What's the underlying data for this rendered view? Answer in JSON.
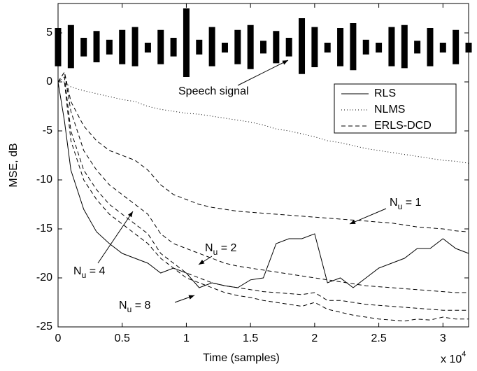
{
  "chart_data": {
    "type": "line",
    "xlabel": "Time (samples)",
    "ylabel": "MSE, dB",
    "x_multiplier": {
      "base": "x 10",
      "exp": "4"
    },
    "xlim": [
      0,
      3.2
    ],
    "ylim": [
      -25,
      8
    ],
    "xticks": [
      0,
      0.5,
      1,
      1.5,
      2,
      2.5,
      3
    ],
    "yticks": [
      5,
      0,
      -5,
      -10,
      -15,
      -20,
      -25
    ],
    "grid": false,
    "legend": "upper-right",
    "x": [
      0,
      0.05,
      0.1,
      0.2,
      0.3,
      0.4,
      0.5,
      0.6,
      0.7,
      0.8,
      0.9,
      1.0,
      1.1,
      1.2,
      1.3,
      1.4,
      1.5,
      1.6,
      1.7,
      1.8,
      1.9,
      2.0,
      2.1,
      2.2,
      2.3,
      2.4,
      2.5,
      2.6,
      2.7,
      2.8,
      2.9,
      3.0,
      3.1,
      3.2
    ],
    "series": [
      {
        "name": "RLS",
        "color": "#000000",
        "dash": "solid",
        "curves": [
          {
            "values": [
              0,
              -4,
              -9,
              -13,
              -15.3,
              -16.5,
              -17.5,
              -18,
              -18.5,
              -19.5,
              -19,
              -19.5,
              -21,
              -20.5,
              -20.8,
              -21,
              -20.2,
              -20,
              -16.5,
              -16,
              -16,
              -15.5,
              -20.5,
              -20,
              -21,
              -20,
              -19,
              -18.5,
              -18,
              -17,
              -17,
              -16,
              -17,
              -17.5
            ]
          }
        ]
      },
      {
        "name": "NLMS",
        "color": "#000000",
        "dash": "dotted",
        "curves": [
          {
            "values": [
              0,
              0,
              -0.5,
              -0.9,
              -1.2,
              -1.5,
              -1.8,
              -2,
              -2.5,
              -2.8,
              -3,
              -3.2,
              -3.3,
              -3.5,
              -3.7,
              -3.9,
              -4.1,
              -4.4,
              -4.8,
              -5,
              -5.3,
              -5.6,
              -6,
              -6.2,
              -6.5,
              -6.8,
              -7,
              -7.2,
              -7.4,
              -7.6,
              -7.8,
              -8,
              -8.1,
              -8.3
            ]
          }
        ]
      },
      {
        "name": "ERLS-DCD",
        "color": "#000000",
        "dash": "dashed",
        "curves": [
          {
            "label": {
              "main": "N",
              "sub": "u",
              "rest": " = 1"
            },
            "values": [
              0,
              1,
              -2,
              -4.5,
              -6,
              -7,
              -7.5,
              -8,
              -9,
              -10.5,
              -11.5,
              -12,
              -12.5,
              -12.8,
              -13,
              -13.2,
              -13.3,
              -13.4,
              -13.5,
              -13.6,
              -13.7,
              -13.8,
              -13.9,
              -14,
              -14.1,
              -14.2,
              -14.3,
              -14.4,
              -14.6,
              -14.8,
              -14.9,
              -15,
              -15.2,
              -15.3
            ]
          },
          {
            "label": {
              "main": "N",
              "sub": "u",
              "rest": " = 2"
            },
            "values": [
              0,
              1,
              -3,
              -7,
              -9,
              -10.5,
              -11.5,
              -12.5,
              -13.5,
              -15.5,
              -16.5,
              -17,
              -17.5,
              -18,
              -18.5,
              -18.8,
              -19,
              -19.2,
              -19.4,
              -19.6,
              -19.8,
              -20,
              -20.2,
              -20.4,
              -20.6,
              -20.8,
              -20.9,
              -21,
              -21.1,
              -21.2,
              -21.3,
              -21.4,
              -21.5,
              -21.5
            ]
          },
          {
            "label": {
              "main": "N",
              "sub": "u",
              "rest": " = 4"
            },
            "values": [
              0,
              0.5,
              -5,
              -9,
              -11,
              -12.5,
              -13.5,
              -14.5,
              -15.5,
              -17.5,
              -18.5,
              -19.5,
              -20,
              -20.5,
              -20.8,
              -21,
              -21.2,
              -21.4,
              -21.5,
              -21.6,
              -21.7,
              -21.5,
              -22.3,
              -22.3,
              -22.5,
              -22.7,
              -22.8,
              -22.9,
              -23,
              -23.1,
              -23.2,
              -23.3,
              -23.3,
              -23.3
            ]
          },
          {
            "label": {
              "main": "N",
              "sub": "u",
              "rest": " = 8"
            },
            "values": [
              0,
              0,
              -6,
              -10,
              -12,
              -13.5,
              -14.5,
              -15.5,
              -16.5,
              -18,
              -19,
              -20,
              -20.5,
              -21,
              -21.5,
              -21.8,
              -22,
              -22.3,
              -22.5,
              -22.7,
              -22.9,
              -22.5,
              -23.2,
              -23.5,
              -23.8,
              -24,
              -24.2,
              -24.3,
              -24.4,
              -24.2,
              -24.3,
              -24,
              -24.2,
              -24.2
            ]
          }
        ]
      }
    ],
    "speech": {
      "label": "Speech signal",
      "x": [
        0,
        0.1,
        0.2,
        0.3,
        0.4,
        0.5,
        0.6,
        0.7,
        0.8,
        0.9,
        1.0,
        1.1,
        1.2,
        1.3,
        1.4,
        1.5,
        1.6,
        1.7,
        1.8,
        1.9,
        2.0,
        2.1,
        2.2,
        2.3,
        2.4,
        2.5,
        2.6,
        2.7,
        2.8,
        2.9,
        3.0,
        3.1,
        3.2
      ],
      "upper": [
        5.5,
        5.8,
        4.5,
        5.2,
        4.3,
        5.3,
        5.6,
        4.0,
        5.3,
        4.5,
        7.5,
        4.3,
        5.6,
        4.0,
        5.3,
        5.8,
        4.2,
        5.2,
        4.5,
        6.5,
        5.6,
        4.0,
        5.5,
        6.0,
        4.3,
        4.0,
        5.6,
        5.8,
        4.2,
        5.5,
        4.0,
        5.3,
        4.0
      ],
      "lower": [
        1.6,
        1.4,
        2.6,
        2.0,
        2.8,
        1.8,
        1.6,
        3.0,
        1.8,
        2.6,
        0.5,
        2.8,
        1.6,
        3.0,
        1.8,
        1.3,
        2.9,
        1.9,
        2.6,
        0.8,
        1.5,
        3.0,
        1.6,
        1.2,
        2.8,
        3.0,
        1.6,
        1.4,
        2.9,
        1.6,
        3.0,
        1.8,
        3.0
      ]
    }
  }
}
